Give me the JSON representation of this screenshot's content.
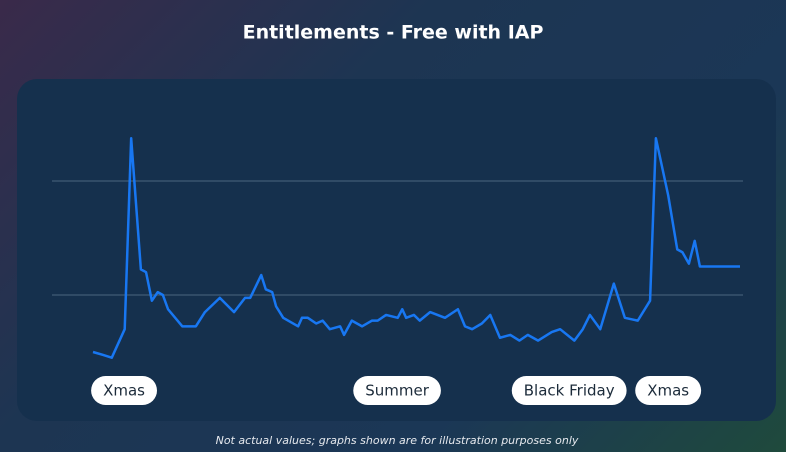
{
  "chart_data": {
    "type": "line",
    "title": "Entitlements - Free with IAP",
    "footnote": "Not actual values; graphs shown are for illustration purposes only",
    "x": [
      0,
      1.5,
      2.9,
      4.9,
      5.9,
      7.4,
      8.2,
      9.1,
      10.0,
      10.8,
      11.6,
      13.8,
      15.9,
      17.3,
      19.6,
      21.8,
      23.5,
      24.3,
      26.0,
      26.7,
      27.7,
      28.3,
      29.4,
      31.7,
      32.3,
      33.2,
      34.5,
      35.5,
      36.6,
      38.2,
      38.8,
      40.0,
      41.6,
      43.1,
      44.0,
      45.3,
      47.1,
      47.8,
      48.4,
      49.6,
      50.5,
      52.1,
      54.4,
      56.4,
      57.5,
      58.6,
      60.1,
      61.4,
      62.9,
      64.5,
      65.9,
      67.2,
      68.8,
      70.9,
      72.2,
      74.4,
      75.7,
      76.8,
      78.4,
      80.5,
      82.2,
      84.2,
      86.1,
      87.0,
      88.9,
      90.3,
      91.1,
      92.1,
      93.0,
      93.8,
      100
    ],
    "values": [
      20,
      19,
      18,
      28,
      95,
      49,
      48,
      38,
      41,
      40,
      35,
      29,
      29,
      34,
      39,
      34,
      39,
      39,
      47,
      42,
      41,
      36,
      32,
      29,
      32,
      32,
      30,
      31,
      28,
      29,
      26,
      31,
      29,
      31,
      31,
      33,
      32,
      35,
      32,
      33,
      31,
      34,
      32,
      35,
      29,
      28,
      30,
      33,
      25,
      26,
      24,
      26,
      24,
      27,
      28,
      24,
      28,
      33,
      28,
      44,
      32,
      31,
      38,
      95,
      75,
      56,
      55,
      51,
      59,
      50,
      50
    ],
    "color": "#1877f2",
    "xlim": [
      0,
      100
    ],
    "ylim": [
      0,
      100
    ],
    "yticks": [
      40,
      80
    ],
    "grid": true,
    "annotations": [
      {
        "text": "Xmas",
        "x": 4.8
      },
      {
        "text": "Summer",
        "x": 47
      },
      {
        "text": "Black Friday",
        "x": 73.6
      },
      {
        "text": "Xmas",
        "x": 88.9
      }
    ]
  }
}
